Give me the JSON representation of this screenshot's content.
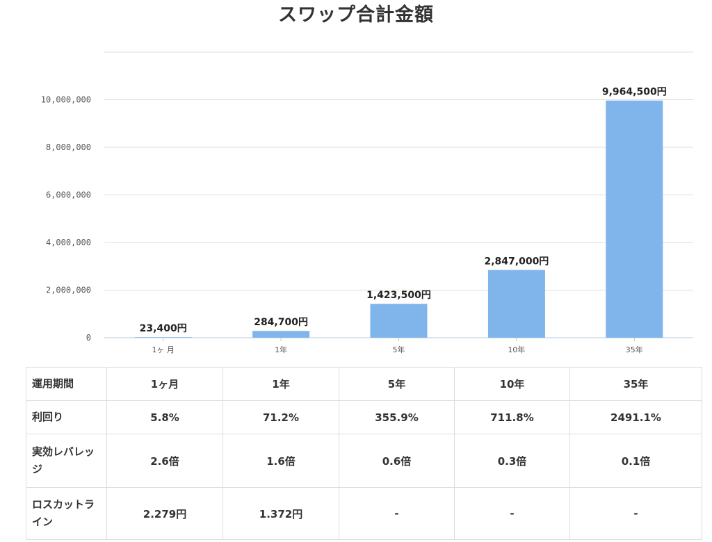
{
  "chart_data": {
    "type": "bar",
    "title": "スワップ合計金額",
    "categories": [
      "1ヶ 月",
      "1年",
      "5年",
      "10年",
      "35年"
    ],
    "values": [
      23400,
      284700,
      1423500,
      2847000,
      9964500
    ],
    "data_labels": [
      "23,400円",
      "284,700円",
      "1,423,500円",
      "2,847,000円",
      "9,964,500円"
    ],
    "y_ticks": [
      0,
      2000000,
      4000000,
      6000000,
      8000000,
      10000000
    ],
    "y_tick_labels": [
      "0",
      "2,000,000",
      "4,000,000",
      "6,000,000",
      "8,000,000",
      "10,000,000"
    ],
    "ylim": [
      0,
      12000000
    ],
    "grid": true,
    "bar_color": "#7fb5ea"
  },
  "table": {
    "columns": [
      "1ヶ月",
      "1年",
      "5年",
      "10年",
      "35年"
    ],
    "rows": [
      {
        "label": "運用期間",
        "values": [
          "1ヶ月",
          "1年",
          "5年",
          "10年",
          "35年"
        ]
      },
      {
        "label": "利回り",
        "values": [
          "5.8%",
          "71.2%",
          "355.9%",
          "711.8%",
          "2491.1%"
        ]
      },
      {
        "label": "実効レバレッジ",
        "values": [
          "2.6倍",
          "1.6倍",
          "0.6倍",
          "0.3倍",
          "0.1倍"
        ]
      },
      {
        "label": "ロスカットライン",
        "values": [
          "2.279円",
          "1.372円",
          "-",
          "-",
          "-"
        ]
      }
    ]
  }
}
